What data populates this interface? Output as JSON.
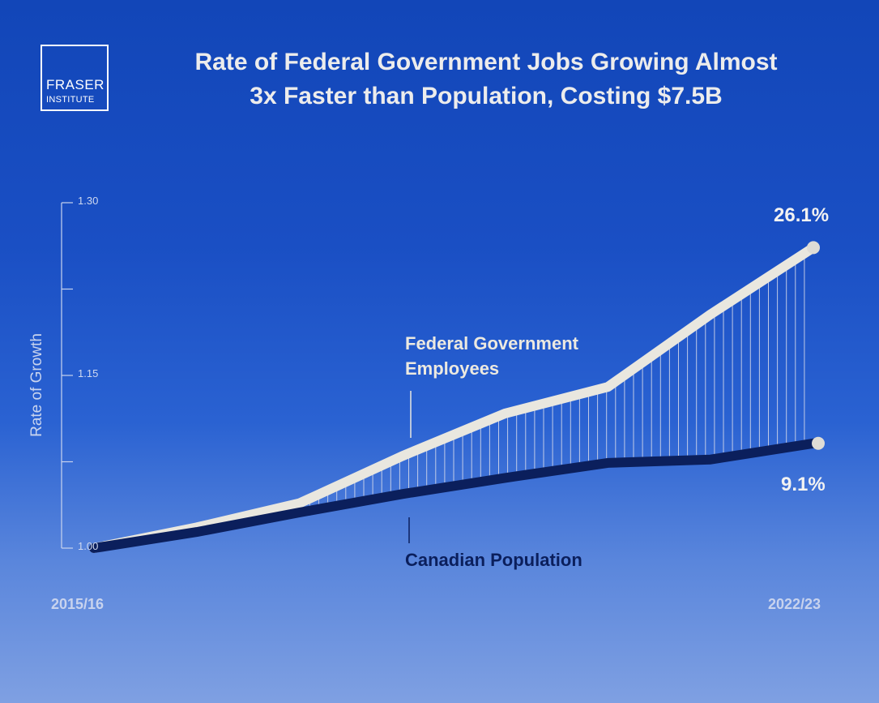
{
  "logo": {
    "line1": "FRASER",
    "line2": "INSTITUTE"
  },
  "title_line1": "Rate of Federal Government Jobs Growing Almost",
  "title_line2": "3x Faster than Population, Costing $7.5B",
  "colors": {
    "government": "#e9e7df",
    "population": "#0b1f5c",
    "background": "#1a4fc4"
  },
  "chart_data": {
    "type": "line",
    "ylabel": "Rate of Growth",
    "ylim": [
      1.0,
      1.3
    ],
    "yticks": [
      1.0,
      1.15,
      1.3
    ],
    "ytick_labels": [
      "1.00",
      "1.15",
      "1.30"
    ],
    "x_start_label": "2015/16",
    "x_end_label": "2022/23",
    "x": [
      0,
      1,
      2,
      3,
      4,
      5,
      6,
      7
    ],
    "series": [
      {
        "name": "Federal Government Employees",
        "label_line1": "Federal Government",
        "label_line2": "Employees",
        "values": [
          1.0,
          1.018,
          1.039,
          1.08,
          1.117,
          1.14,
          1.203,
          1.261
        ],
        "end_label": "26.1%"
      },
      {
        "name": "Canadian Population",
        "label_line1": "Canadian Population",
        "values": [
          1.0,
          1.014,
          1.031,
          1.047,
          1.061,
          1.074,
          1.077,
          1.091
        ],
        "end_label": "9.1%"
      }
    ],
    "grid": false
  }
}
